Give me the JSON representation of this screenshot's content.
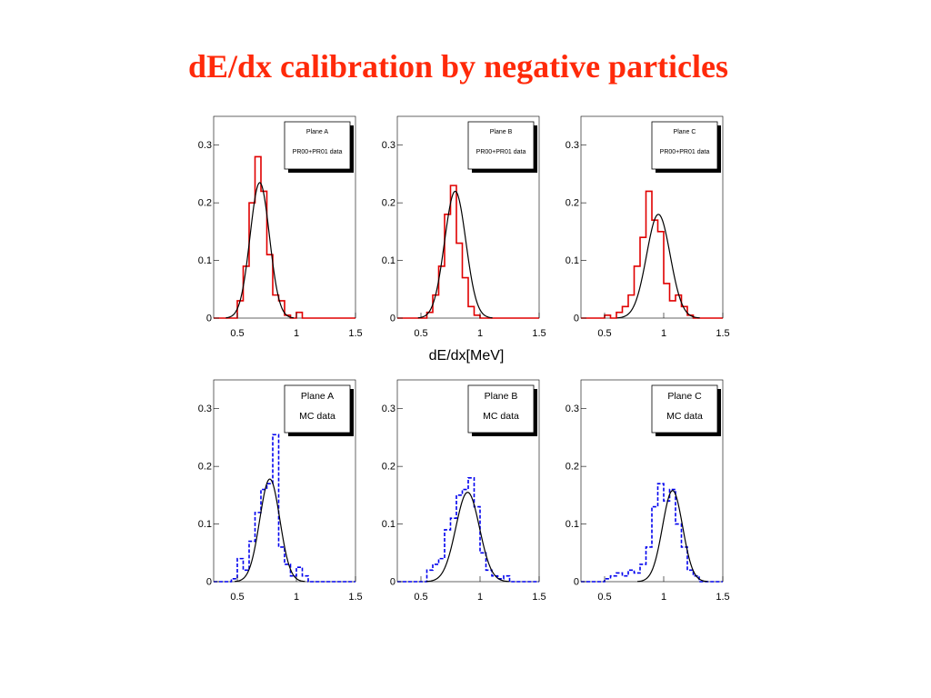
{
  "slide": {
    "title": "dE/dx calibration by negative particles",
    "xaxis_label": "dE/dx[MeV]"
  },
  "colors": {
    "title": "#ff2a0a",
    "data_hist": "#e00000",
    "mc_hist": "#0000ee",
    "fit": "#000000"
  },
  "chart_data": [
    {
      "type": "histogram",
      "legend": [
        "Plane A",
        "PR00+PR01 data"
      ],
      "line_style": "solid",
      "color": "#e00000",
      "xlim": [
        0.3,
        1.5
      ],
      "ylim": [
        0,
        0.35
      ],
      "xticks": [
        "0.5",
        "1",
        "1.5"
      ],
      "yticks": [
        "0",
        "0.1",
        "0.2",
        "0.3"
      ],
      "grid": false,
      "legend_position": "top-right",
      "bin_edges": [
        0.5,
        0.55,
        0.6,
        0.65,
        0.7,
        0.75,
        0.8,
        0.85,
        0.9,
        0.95,
        1.0,
        1.05
      ],
      "values": [
        0.03,
        0.09,
        0.2,
        0.28,
        0.22,
        0.11,
        0.04,
        0.03,
        0.005,
        0.0,
        0.01
      ],
      "fit": {
        "type": "gaussian",
        "amplitude": 0.235,
        "mean": 0.69,
        "sigma": 0.082
      }
    },
    {
      "type": "histogram",
      "legend": [
        "Plane B",
        "PR00+PR01 data"
      ],
      "line_style": "solid",
      "color": "#e00000",
      "xlim": [
        0.3,
        1.5
      ],
      "ylim": [
        0,
        0.35
      ],
      "xticks": [
        "0.5",
        "1",
        "1.5"
      ],
      "yticks": [
        "0",
        "0.1",
        "0.2",
        "0.3"
      ],
      "grid": false,
      "legend_position": "top-right",
      "bin_edges": [
        0.55,
        0.6,
        0.65,
        0.7,
        0.75,
        0.8,
        0.85,
        0.9,
        0.95,
        1.0
      ],
      "values": [
        0.01,
        0.04,
        0.09,
        0.18,
        0.23,
        0.13,
        0.07,
        0.02,
        0.005
      ],
      "fit": {
        "type": "gaussian",
        "amplitude": 0.22,
        "mean": 0.79,
        "sigma": 0.09
      }
    },
    {
      "type": "histogram",
      "legend": [
        "Plane C",
        "PR00+PR01 data"
      ],
      "line_style": "solid",
      "color": "#e00000",
      "xlim": [
        0.3,
        1.5
      ],
      "ylim": [
        0,
        0.35
      ],
      "xticks": [
        "0.5",
        "1",
        "1.5"
      ],
      "yticks": [
        "0",
        "0.1",
        "0.2",
        "0.3"
      ],
      "grid": false,
      "legend_position": "top-right",
      "bin_edges": [
        0.5,
        0.55,
        0.6,
        0.65,
        0.7,
        0.75,
        0.8,
        0.85,
        0.9,
        0.95,
        1.0,
        1.05,
        1.1,
        1.15,
        1.2,
        1.25
      ],
      "values": [
        0.005,
        0.0,
        0.01,
        0.02,
        0.04,
        0.09,
        0.14,
        0.22,
        0.17,
        0.15,
        0.06,
        0.03,
        0.04,
        0.02,
        0.005
      ],
      "fit": {
        "type": "gaussian",
        "amplitude": 0.18,
        "mean": 0.955,
        "sigma": 0.1
      }
    },
    {
      "type": "histogram",
      "legend": [
        "Plane A",
        "MC data"
      ],
      "line_style": "dashed",
      "color": "#0000ee",
      "xlim": [
        0.3,
        1.5
      ],
      "ylim": [
        0,
        0.35
      ],
      "xticks": [
        "0.5",
        "1",
        "1.5"
      ],
      "yticks": [
        "0",
        "0.1",
        "0.2",
        "0.3"
      ],
      "grid": false,
      "legend_position": "top-right",
      "bin_edges": [
        0.45,
        0.5,
        0.55,
        0.6,
        0.65,
        0.7,
        0.75,
        0.8,
        0.85,
        0.9,
        0.95,
        1.0,
        1.05,
        1.1
      ],
      "values": [
        0.005,
        0.04,
        0.02,
        0.07,
        0.12,
        0.16,
        0.17,
        0.255,
        0.06,
        0.03,
        0.01,
        0.025,
        0.01
      ],
      "fit": {
        "type": "gaussian",
        "amplitude": 0.178,
        "mean": 0.775,
        "sigma": 0.085
      }
    },
    {
      "type": "histogram",
      "legend": [
        "Plane B",
        "MC data"
      ],
      "line_style": "dashed",
      "color": "#0000ee",
      "xlim": [
        0.3,
        1.5
      ],
      "ylim": [
        0,
        0.35
      ],
      "xticks": [
        "0.5",
        "1",
        "1.5"
      ],
      "yticks": [
        "0",
        "0.1",
        "0.2",
        "0.3"
      ],
      "grid": false,
      "legend_position": "top-right",
      "bin_edges": [
        0.55,
        0.6,
        0.65,
        0.7,
        0.75,
        0.8,
        0.85,
        0.9,
        0.95,
        1.0,
        1.05,
        1.1,
        1.15,
        1.2,
        1.25
      ],
      "values": [
        0.02,
        0.03,
        0.04,
        0.09,
        0.11,
        0.15,
        0.16,
        0.18,
        0.13,
        0.05,
        0.02,
        0.01,
        0.005,
        0.01
      ],
      "fit": {
        "type": "gaussian",
        "amplitude": 0.155,
        "mean": 0.895,
        "sigma": 0.1
      }
    },
    {
      "type": "histogram",
      "legend": [
        "Plane C",
        "MC data"
      ],
      "line_style": "dashed",
      "color": "#0000ee",
      "xlim": [
        0.3,
        1.5
      ],
      "ylim": [
        0,
        0.35
      ],
      "xticks": [
        "0.5",
        "1",
        "1.5"
      ],
      "yticks": [
        "0",
        "0.1",
        "0.2",
        "0.3"
      ],
      "grid": false,
      "legend_position": "top-right",
      "bin_edges": [
        0.5,
        0.55,
        0.6,
        0.65,
        0.7,
        0.75,
        0.8,
        0.85,
        0.9,
        0.95,
        1.0,
        1.05,
        1.1,
        1.15,
        1.2,
        1.25,
        1.3
      ],
      "values": [
        0.005,
        0.01,
        0.015,
        0.01,
        0.02,
        0.015,
        0.03,
        0.06,
        0.13,
        0.17,
        0.14,
        0.16,
        0.1,
        0.06,
        0.02,
        0.01
      ],
      "fit": {
        "type": "gaussian",
        "amplitude": 0.158,
        "mean": 1.075,
        "sigma": 0.085
      }
    }
  ]
}
